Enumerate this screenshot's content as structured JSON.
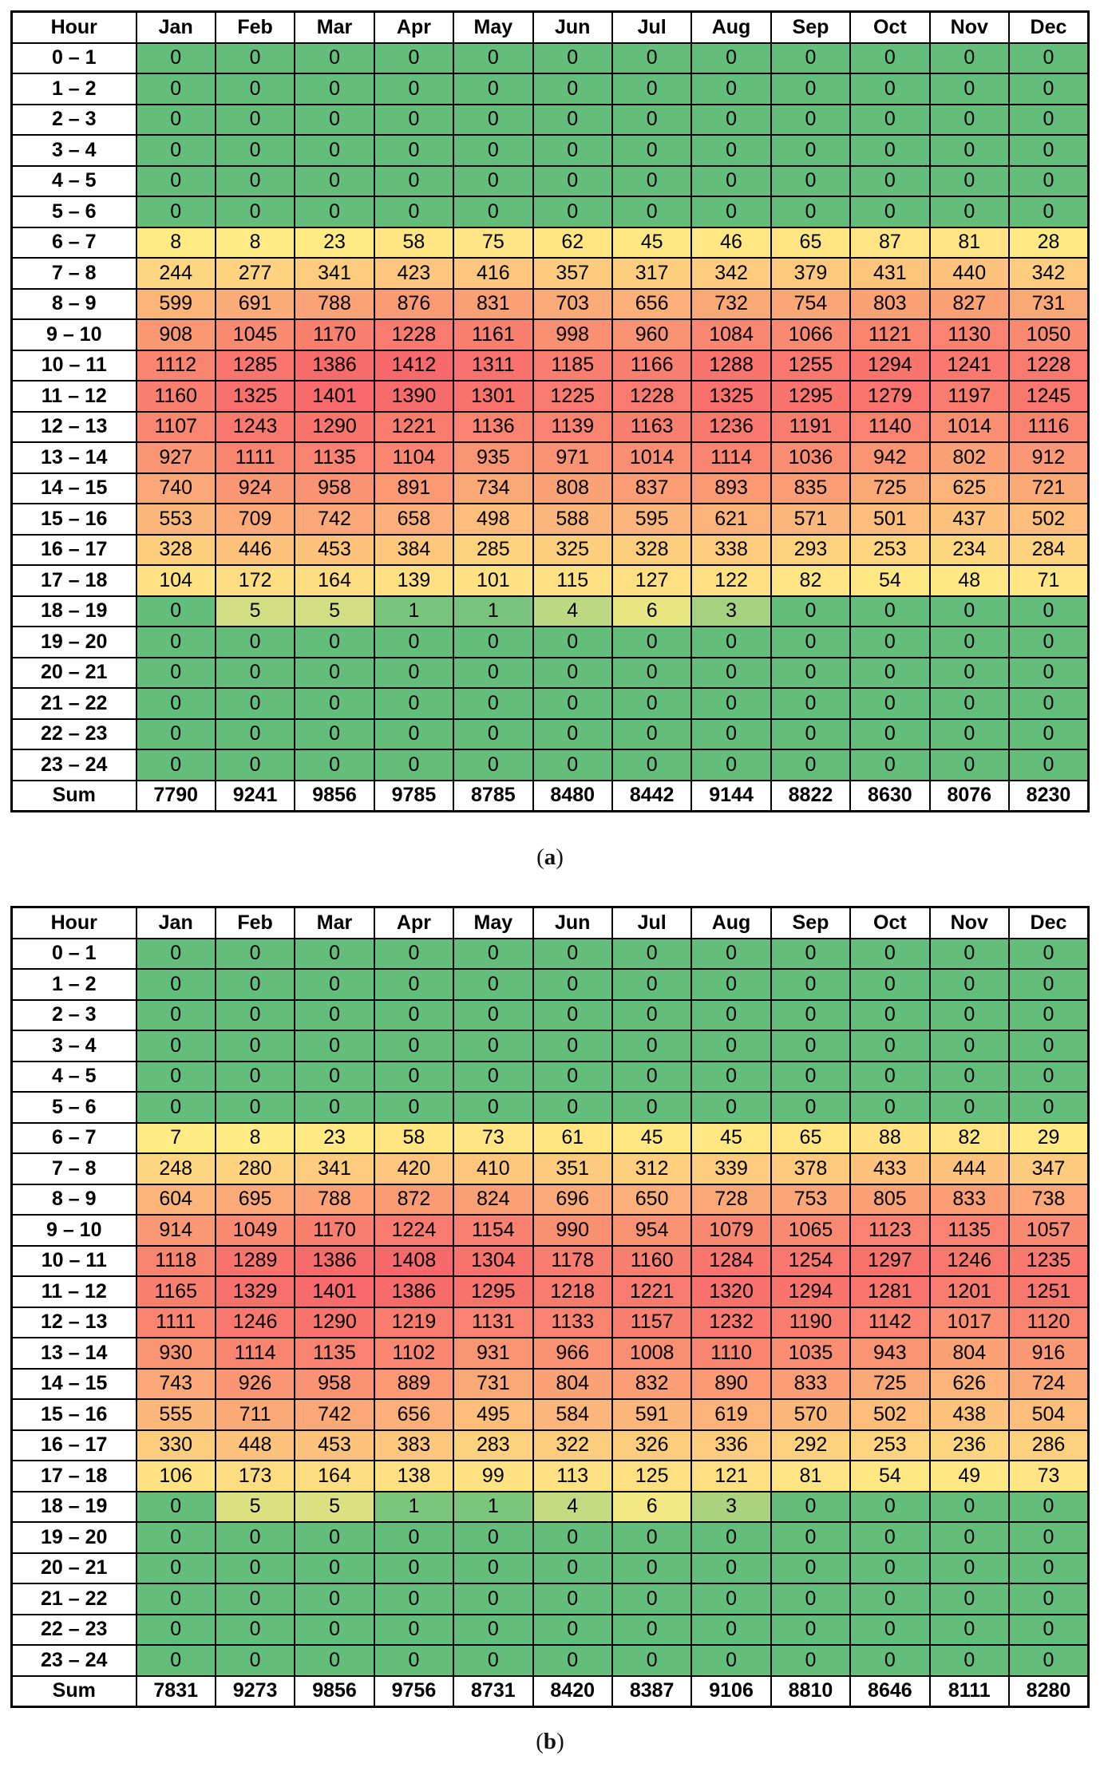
{
  "colorscale": {
    "min_color": "#63BE7B",
    "mid_color": "#FFEB84",
    "max_color": "#F8696B",
    "midpoint": "50th percentile",
    "border_color": "#000000",
    "header_bg": "#FFFFFF"
  },
  "chart_data": [
    {
      "type": "heatmap",
      "caption_prefix": "(",
      "caption_letter": "a",
      "caption_suffix": ")",
      "corner_label": "Hour",
      "columns": [
        "Jan",
        "Feb",
        "Mar",
        "Apr",
        "May",
        "Jun",
        "Jul",
        "Aug",
        "Sep",
        "Oct",
        "Nov",
        "Dec"
      ],
      "row_labels": [
        "0 – 1",
        "1 – 2",
        "2 – 3",
        "3 – 4",
        "4 – 5",
        "5 – 6",
        "6 – 7",
        "7 – 8",
        "8 – 9",
        "9 – 10",
        "10 – 11",
        "11 – 12",
        "12 – 13",
        "13 – 14",
        "14 – 15",
        "15 – 16",
        "16 – 17",
        "17 – 18",
        "18 – 19",
        "19 – 20",
        "20 – 21",
        "21 – 22",
        "22 – 23",
        "23 – 24"
      ],
      "rows": [
        [
          0,
          0,
          0,
          0,
          0,
          0,
          0,
          0,
          0,
          0,
          0,
          0
        ],
        [
          0,
          0,
          0,
          0,
          0,
          0,
          0,
          0,
          0,
          0,
          0,
          0
        ],
        [
          0,
          0,
          0,
          0,
          0,
          0,
          0,
          0,
          0,
          0,
          0,
          0
        ],
        [
          0,
          0,
          0,
          0,
          0,
          0,
          0,
          0,
          0,
          0,
          0,
          0
        ],
        [
          0,
          0,
          0,
          0,
          0,
          0,
          0,
          0,
          0,
          0,
          0,
          0
        ],
        [
          0,
          0,
          0,
          0,
          0,
          0,
          0,
          0,
          0,
          0,
          0,
          0
        ],
        [
          8,
          8,
          23,
          58,
          75,
          62,
          45,
          46,
          65,
          87,
          81,
          28
        ],
        [
          244,
          277,
          341,
          423,
          416,
          357,
          317,
          342,
          379,
          431,
          440,
          342
        ],
        [
          599,
          691,
          788,
          876,
          831,
          703,
          656,
          732,
          754,
          803,
          827,
          731
        ],
        [
          908,
          1045,
          1170,
          1228,
          1161,
          998,
          960,
          1084,
          1066,
          1121,
          1130,
          1050
        ],
        [
          1112,
          1285,
          1386,
          1412,
          1311,
          1185,
          1166,
          1288,
          1255,
          1294,
          1241,
          1228
        ],
        [
          1160,
          1325,
          1401,
          1390,
          1301,
          1225,
          1228,
          1325,
          1295,
          1279,
          1197,
          1245
        ],
        [
          1107,
          1243,
          1290,
          1221,
          1136,
          1139,
          1163,
          1236,
          1191,
          1140,
          1014,
          1116
        ],
        [
          927,
          1111,
          1135,
          1104,
          935,
          971,
          1014,
          1114,
          1036,
          942,
          802,
          912
        ],
        [
          740,
          924,
          958,
          891,
          734,
          808,
          837,
          893,
          835,
          725,
          625,
          721
        ],
        [
          553,
          709,
          742,
          658,
          498,
          588,
          595,
          621,
          571,
          501,
          437,
          502
        ],
        [
          328,
          446,
          453,
          384,
          285,
          325,
          328,
          338,
          293,
          253,
          234,
          284
        ],
        [
          104,
          172,
          164,
          139,
          101,
          115,
          127,
          122,
          82,
          54,
          48,
          71
        ],
        [
          0,
          5,
          5,
          1,
          1,
          4,
          6,
          3,
          0,
          0,
          0,
          0
        ],
        [
          0,
          0,
          0,
          0,
          0,
          0,
          0,
          0,
          0,
          0,
          0,
          0
        ],
        [
          0,
          0,
          0,
          0,
          0,
          0,
          0,
          0,
          0,
          0,
          0,
          0
        ],
        [
          0,
          0,
          0,
          0,
          0,
          0,
          0,
          0,
          0,
          0,
          0,
          0
        ],
        [
          0,
          0,
          0,
          0,
          0,
          0,
          0,
          0,
          0,
          0,
          0,
          0
        ],
        [
          0,
          0,
          0,
          0,
          0,
          0,
          0,
          0,
          0,
          0,
          0,
          0
        ]
      ],
      "sum_label": "Sum",
      "sum_values": [
        7790,
        9241,
        9856,
        9785,
        8785,
        8480,
        8442,
        9144,
        8822,
        8630,
        8076,
        8230
      ]
    },
    {
      "type": "heatmap",
      "caption_prefix": "(",
      "caption_letter": "b",
      "caption_suffix": ")",
      "corner_label": "Hour",
      "columns": [
        "Jan",
        "Feb",
        "Mar",
        "Apr",
        "May",
        "Jun",
        "Jul",
        "Aug",
        "Sep",
        "Oct",
        "Nov",
        "Dec"
      ],
      "row_labels": [
        "0 – 1",
        "1 – 2",
        "2 – 3",
        "3 – 4",
        "4 – 5",
        "5 – 6",
        "6 – 7",
        "7 – 8",
        "8 – 9",
        "9 – 10",
        "10 – 11",
        "11 – 12",
        "12 – 13",
        "13 – 14",
        "14 – 15",
        "15 – 16",
        "16 – 17",
        "17 – 18",
        "18 – 19",
        "19 – 20",
        "20 – 21",
        "21 – 22",
        "22 – 23",
        "23 – 24"
      ],
      "rows": [
        [
          0,
          0,
          0,
          0,
          0,
          0,
          0,
          0,
          0,
          0,
          0,
          0
        ],
        [
          0,
          0,
          0,
          0,
          0,
          0,
          0,
          0,
          0,
          0,
          0,
          0
        ],
        [
          0,
          0,
          0,
          0,
          0,
          0,
          0,
          0,
          0,
          0,
          0,
          0
        ],
        [
          0,
          0,
          0,
          0,
          0,
          0,
          0,
          0,
          0,
          0,
          0,
          0
        ],
        [
          0,
          0,
          0,
          0,
          0,
          0,
          0,
          0,
          0,
          0,
          0,
          0
        ],
        [
          0,
          0,
          0,
          0,
          0,
          0,
          0,
          0,
          0,
          0,
          0,
          0
        ],
        [
          7,
          8,
          23,
          58,
          73,
          61,
          45,
          45,
          65,
          88,
          82,
          29
        ],
        [
          248,
          280,
          341,
          420,
          410,
          351,
          312,
          339,
          378,
          433,
          444,
          347
        ],
        [
          604,
          695,
          788,
          872,
          824,
          696,
          650,
          728,
          753,
          805,
          833,
          738
        ],
        [
          914,
          1049,
          1170,
          1224,
          1154,
          990,
          954,
          1079,
          1065,
          1123,
          1135,
          1057
        ],
        [
          1118,
          1289,
          1386,
          1408,
          1304,
          1178,
          1160,
          1284,
          1254,
          1297,
          1246,
          1235
        ],
        [
          1165,
          1329,
          1401,
          1386,
          1295,
          1218,
          1221,
          1320,
          1294,
          1281,
          1201,
          1251
        ],
        [
          1111,
          1246,
          1290,
          1219,
          1131,
          1133,
          1157,
          1232,
          1190,
          1142,
          1017,
          1120
        ],
        [
          930,
          1114,
          1135,
          1102,
          931,
          966,
          1008,
          1110,
          1035,
          943,
          804,
          916
        ],
        [
          743,
          926,
          958,
          889,
          731,
          804,
          832,
          890,
          833,
          725,
          626,
          724
        ],
        [
          555,
          711,
          742,
          656,
          495,
          584,
          591,
          619,
          570,
          502,
          438,
          504
        ],
        [
          330,
          448,
          453,
          383,
          283,
          322,
          326,
          336,
          292,
          253,
          236,
          286
        ],
        [
          106,
          173,
          164,
          138,
          99,
          113,
          125,
          121,
          81,
          54,
          49,
          73
        ],
        [
          0,
          5,
          5,
          1,
          1,
          4,
          6,
          3,
          0,
          0,
          0,
          0
        ],
        [
          0,
          0,
          0,
          0,
          0,
          0,
          0,
          0,
          0,
          0,
          0,
          0
        ],
        [
          0,
          0,
          0,
          0,
          0,
          0,
          0,
          0,
          0,
          0,
          0,
          0
        ],
        [
          0,
          0,
          0,
          0,
          0,
          0,
          0,
          0,
          0,
          0,
          0,
          0
        ],
        [
          0,
          0,
          0,
          0,
          0,
          0,
          0,
          0,
          0,
          0,
          0,
          0
        ],
        [
          0,
          0,
          0,
          0,
          0,
          0,
          0,
          0,
          0,
          0,
          0,
          0
        ]
      ],
      "sum_label": "Sum",
      "sum_values": [
        7831,
        9273,
        9856,
        9756,
        8731,
        8420,
        8387,
        9106,
        8810,
        8646,
        8111,
        8280
      ]
    }
  ]
}
